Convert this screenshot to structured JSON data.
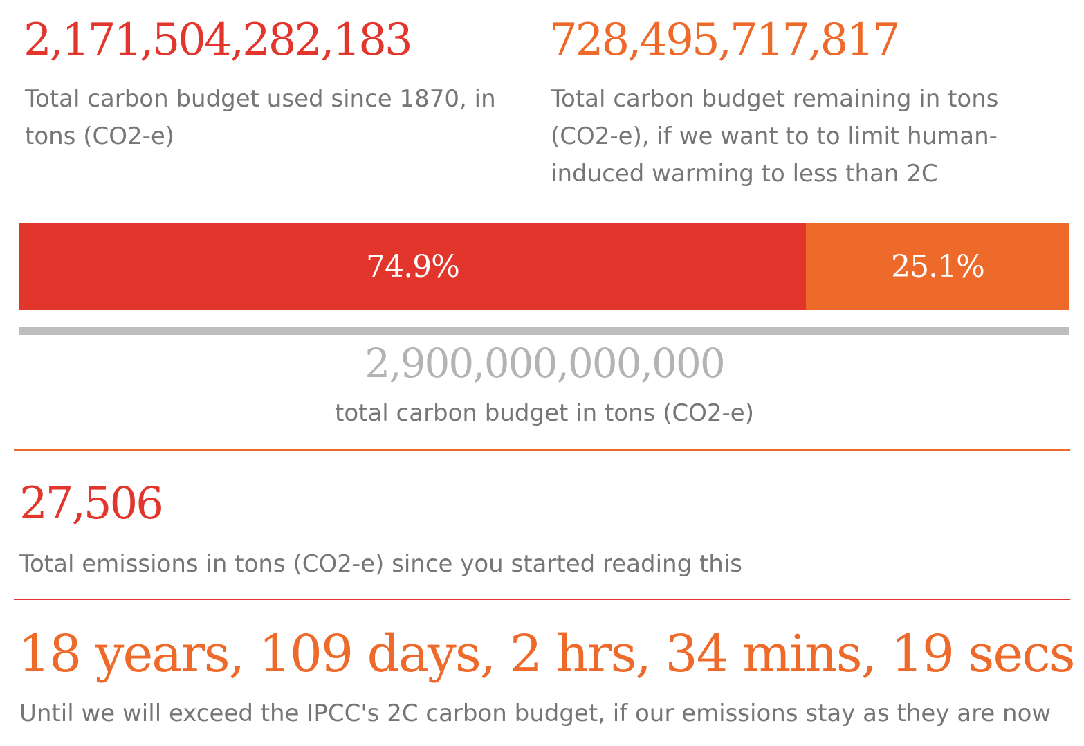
{
  "colors": {
    "used": "#e2352b",
    "remaining": "#ed6a2b",
    "total": "#b3b3b3",
    "caption": "#767676"
  },
  "used": {
    "value": "2,171,504,282,183",
    "caption": "Total carbon budget used since 1870, in tons (CO2-e)"
  },
  "remaining": {
    "value": "728,495,717,817",
    "caption": "Total carbon budget remaining in tons (CO2-e), if we want to to limit human-induced warming to less than 2C"
  },
  "split": {
    "used_percent": 74.9,
    "remaining_percent": 25.1,
    "used_label": "74.9%",
    "remaining_label": "25.1%"
  },
  "total": {
    "value": "2,900,000,000,000",
    "caption": "total carbon budget in tons (CO2-e)"
  },
  "since_reading": {
    "value": "27,506",
    "caption": "Total emissions in tons (CO2-e) since you started reading this"
  },
  "countdown": {
    "value": "18 years, 109 days, 2 hrs, 34 mins, 19 secs",
    "caption": "Until we will exceed the IPCC's 2C carbon budget, if our emissions stay as they are now"
  }
}
